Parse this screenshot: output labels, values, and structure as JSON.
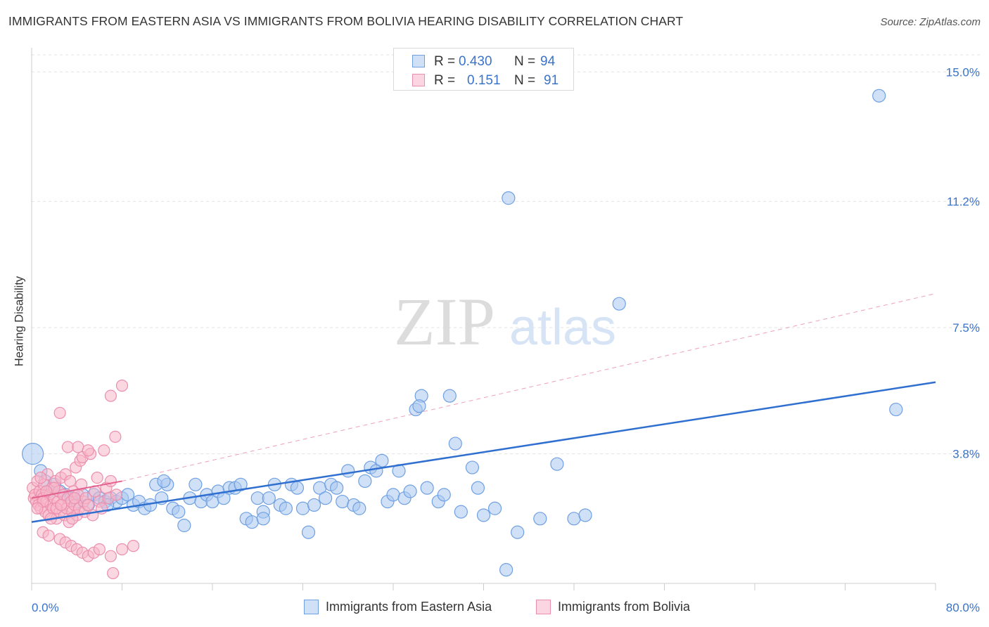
{
  "title": "IMMIGRANTS FROM EASTERN ASIA VS IMMIGRANTS FROM BOLIVIA HEARING DISABILITY CORRELATION CHART",
  "source": "Source: ZipAtlas.com",
  "watermark": {
    "zip": "ZIP",
    "atlas": "atlas"
  },
  "legend_stats": [
    {
      "r_label": "R =",
      "r_value": "0.430",
      "n_label": "N =",
      "n_value": "94",
      "color": "#a9c8f0",
      "border": "#5b8fd6"
    },
    {
      "r_label": "R =",
      "r_value": "0.151",
      "n_label": "N =",
      "n_value": "91",
      "color": "#f7b6c8",
      "border": "#e9799c"
    }
  ],
  "chart_data": {
    "type": "scatter",
    "xlabel": "",
    "ylabel": "Hearing Disability",
    "xlim": [
      0,
      80
    ],
    "ylim": [
      0,
      15.5
    ],
    "x_tick_labels": [
      "0.0%",
      "80.0%"
    ],
    "y_ticks": [
      3.8,
      7.5,
      11.2,
      15.0
    ],
    "y_tick_labels": [
      "3.8%",
      "7.5%",
      "11.2%",
      "15.0%"
    ],
    "grid": true,
    "legend_position": "bottom",
    "series": [
      {
        "name": "Immigrants from Eastern Asia",
        "color": "#6fa0e2",
        "fill": "#a9c8f0",
        "trend": {
          "x": [
            0,
            80
          ],
          "y": [
            1.8,
            5.9
          ],
          "color": "#2f6fcf"
        },
        "points": [
          [
            0.1,
            3.8
          ],
          [
            0.8,
            3.3
          ],
          [
            1.2,
            3.0
          ],
          [
            1.5,
            2.7
          ],
          [
            2.0,
            2.9
          ],
          [
            2.5,
            2.7
          ],
          [
            3.0,
            2.6
          ],
          [
            3.5,
            2.5
          ],
          [
            4.0,
            2.4
          ],
          [
            4.5,
            2.6
          ],
          [
            5.0,
            2.3
          ],
          [
            5.5,
            2.6
          ],
          [
            6.0,
            2.5
          ],
          [
            6.5,
            2.4
          ],
          [
            7.0,
            2.5
          ],
          [
            7.5,
            2.4
          ],
          [
            8.0,
            2.5
          ],
          [
            8.5,
            2.6
          ],
          [
            9.0,
            2.3
          ],
          [
            9.5,
            2.4
          ],
          [
            10.0,
            2.2
          ],
          [
            10.5,
            2.3
          ],
          [
            11.0,
            2.9
          ],
          [
            11.5,
            2.5
          ],
          [
            12.0,
            2.9
          ],
          [
            12.5,
            2.2
          ],
          [
            13.0,
            2.1
          ],
          [
            13.5,
            1.7
          ],
          [
            14.0,
            2.5
          ],
          [
            14.5,
            2.9
          ],
          [
            15.0,
            2.4
          ],
          [
            15.5,
            2.6
          ],
          [
            16.0,
            2.4
          ],
          [
            16.5,
            2.7
          ],
          [
            17.0,
            2.5
          ],
          [
            17.5,
            2.8
          ],
          [
            18.0,
            2.8
          ],
          [
            18.5,
            2.9
          ],
          [
            19.0,
            1.9
          ],
          [
            19.5,
            1.8
          ],
          [
            20.0,
            2.5
          ],
          [
            20.5,
            2.1
          ],
          [
            21.0,
            2.5
          ],
          [
            21.5,
            2.9
          ],
          [
            22.0,
            2.3
          ],
          [
            22.5,
            2.2
          ],
          [
            23.0,
            2.9
          ],
          [
            23.5,
            2.8
          ],
          [
            24.0,
            2.2
          ],
          [
            24.5,
            1.5
          ],
          [
            25.0,
            2.3
          ],
          [
            25.5,
            2.8
          ],
          [
            26.0,
            2.5
          ],
          [
            26.5,
            2.9
          ],
          [
            27.0,
            2.8
          ],
          [
            27.5,
            2.4
          ],
          [
            28.0,
            3.3
          ],
          [
            28.5,
            2.3
          ],
          [
            29.0,
            2.2
          ],
          [
            29.5,
            3.0
          ],
          [
            30.0,
            3.4
          ],
          [
            30.5,
            3.3
          ],
          [
            31.0,
            3.6
          ],
          [
            31.5,
            2.4
          ],
          [
            32.0,
            2.6
          ],
          [
            32.5,
            3.3
          ],
          [
            33.0,
            2.5
          ],
          [
            33.5,
            2.7
          ],
          [
            34.0,
            5.1
          ],
          [
            34.5,
            5.5
          ],
          [
            35.0,
            2.8
          ],
          [
            36.0,
            2.4
          ],
          [
            37.0,
            5.5
          ],
          [
            38.0,
            2.1
          ],
          [
            39.0,
            3.4
          ],
          [
            39.5,
            2.8
          ],
          [
            40.0,
            2.0
          ],
          [
            41.0,
            2.2
          ],
          [
            42.0,
            0.4
          ],
          [
            42.2,
            11.3
          ],
          [
            43.0,
            1.5
          ],
          [
            46.5,
            3.5
          ],
          [
            48.0,
            1.9
          ],
          [
            49.0,
            2.0
          ],
          [
            52.0,
            8.2
          ],
          [
            75.0,
            14.3
          ],
          [
            76.5,
            5.1
          ],
          [
            34.3,
            5.2
          ],
          [
            37.5,
            4.1
          ],
          [
            45.0,
            1.9
          ],
          [
            6.7,
            2.3
          ],
          [
            11.7,
            3.0
          ],
          [
            20.5,
            1.9
          ],
          [
            36.5,
            2.6
          ]
        ],
        "point_sizes": [
          22
        ]
      },
      {
        "name": "Immigrants from Bolivia",
        "color": "#ec8fae",
        "fill": "#f7b6c8",
        "trend": {
          "x": [
            0,
            8
          ],
          "y": [
            2.5,
            3.0
          ],
          "color": "#e4608e",
          "dashed_extension": {
            "x": [
              8,
              80
            ],
            "y": [
              3.0,
              8.5
            ]
          }
        },
        "points": [
          [
            0.1,
            2.8
          ],
          [
            0.2,
            2.5
          ],
          [
            0.3,
            2.6
          ],
          [
            0.4,
            2.4
          ],
          [
            0.5,
            3.0
          ],
          [
            0.6,
            2.3
          ],
          [
            0.7,
            2.7
          ],
          [
            0.8,
            2.2
          ],
          [
            0.9,
            2.6
          ],
          [
            1.0,
            2.5
          ],
          [
            1.1,
            2.9
          ],
          [
            1.2,
            2.1
          ],
          [
            1.3,
            2.4
          ],
          [
            1.4,
            3.2
          ],
          [
            1.5,
            2.0
          ],
          [
            1.6,
            2.6
          ],
          [
            1.7,
            2.3
          ],
          [
            1.8,
            2.8
          ],
          [
            1.9,
            2.2
          ],
          [
            2.0,
            2.5
          ],
          [
            2.1,
            3.0
          ],
          [
            2.2,
            1.9
          ],
          [
            2.3,
            2.4
          ],
          [
            2.4,
            2.7
          ],
          [
            2.5,
            2.1
          ],
          [
            2.6,
            3.1
          ],
          [
            2.7,
            2.3
          ],
          [
            2.8,
            2.6
          ],
          [
            2.9,
            2.0
          ],
          [
            3.0,
            3.2
          ],
          [
            3.1,
            2.2
          ],
          [
            3.2,
            2.5
          ],
          [
            3.3,
            1.8
          ],
          [
            3.4,
            3.0
          ],
          [
            3.5,
            2.4
          ],
          [
            3.6,
            2.1
          ],
          [
            3.7,
            2.7
          ],
          [
            3.8,
            2.3
          ],
          [
            3.9,
            3.4
          ],
          [
            4.0,
            2.0
          ],
          [
            4.1,
            2.6
          ],
          [
            4.2,
            2.2
          ],
          [
            4.3,
            3.6
          ],
          [
            4.4,
            2.9
          ],
          [
            4.5,
            3.7
          ],
          [
            4.6,
            2.4
          ],
          [
            4.7,
            2.1
          ],
          [
            4.8,
            2.5
          ],
          [
            5.0,
            2.3
          ],
          [
            5.2,
            3.8
          ],
          [
            5.4,
            2.0
          ],
          [
            5.6,
            2.7
          ],
          [
            5.8,
            3.1
          ],
          [
            6.0,
            2.4
          ],
          [
            6.2,
            2.2
          ],
          [
            6.4,
            3.9
          ],
          [
            6.6,
            2.8
          ],
          [
            6.8,
            2.5
          ],
          [
            7.0,
            3.0
          ],
          [
            7.5,
            2.6
          ],
          [
            1.0,
            1.5
          ],
          [
            1.5,
            1.4
          ],
          [
            2.5,
            1.3
          ],
          [
            3.0,
            1.2
          ],
          [
            3.5,
            1.1
          ],
          [
            4.0,
            1.0
          ],
          [
            4.5,
            0.9
          ],
          [
            5.0,
            0.8
          ],
          [
            5.5,
            0.9
          ],
          [
            6.0,
            1.0
          ],
          [
            7.0,
            0.8
          ],
          [
            8.0,
            1.0
          ],
          [
            9.0,
            1.1
          ],
          [
            7.2,
            0.3
          ],
          [
            7.4,
            4.3
          ],
          [
            8.0,
            5.8
          ],
          [
            7.0,
            5.5
          ],
          [
            2.5,
            5.0
          ],
          [
            3.2,
            4.0
          ],
          [
            4.1,
            4.0
          ],
          [
            5.0,
            3.9
          ],
          [
            2.0,
            2.8
          ],
          [
            1.0,
            2.4
          ],
          [
            0.5,
            2.2
          ],
          [
            1.7,
            1.9
          ],
          [
            3.6,
            1.9
          ],
          [
            2.2,
            2.2
          ],
          [
            0.8,
            3.1
          ],
          [
            1.3,
            2.7
          ],
          [
            2.6,
            2.3
          ],
          [
            3.8,
            2.5
          ]
        ],
        "point_sizes": [
          18
        ]
      }
    ]
  }
}
